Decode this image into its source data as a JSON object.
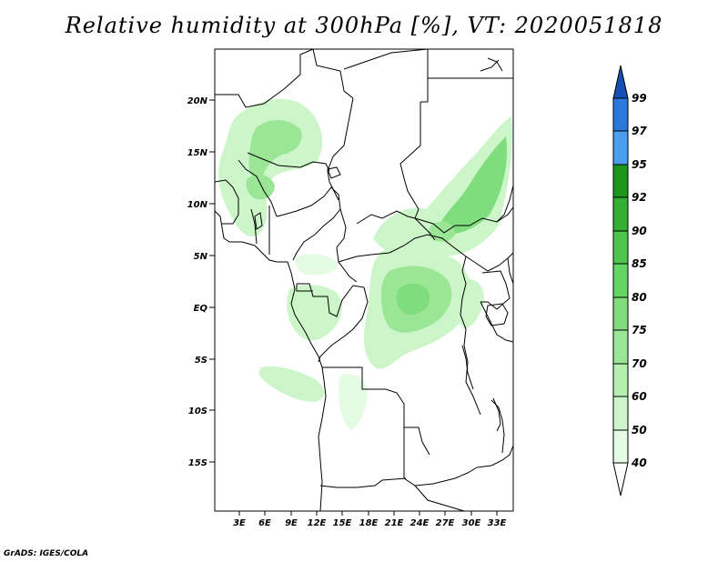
{
  "title": "Relative humidity at 300hPa [%], VT: 2020051818",
  "credit": "GrADS: IGES/COLA",
  "map": {
    "lat_ticks": [
      "20N",
      "15N",
      "10N",
      "5N",
      "EQ",
      "5S",
      "10S",
      "15S"
    ],
    "lon_ticks": [
      "3E",
      "6E",
      "9E",
      "12E",
      "15E",
      "18E",
      "21E",
      "24E",
      "27E",
      "30E",
      "33E"
    ]
  },
  "colorbar": {
    "labels": [
      "40",
      "50",
      "60",
      "70",
      "75",
      "80",
      "85",
      "90",
      "92",
      "95",
      "97",
      "99"
    ],
    "colors": [
      "#ffffff",
      "#e6fbe4",
      "#ccf5c9",
      "#b5efb0",
      "#9ae696",
      "#7fdd7d",
      "#64d464",
      "#4ec44e",
      "#33b033",
      "#1c951c",
      "#4a9ef0",
      "#2a78dc",
      "#1450b4"
    ]
  }
}
